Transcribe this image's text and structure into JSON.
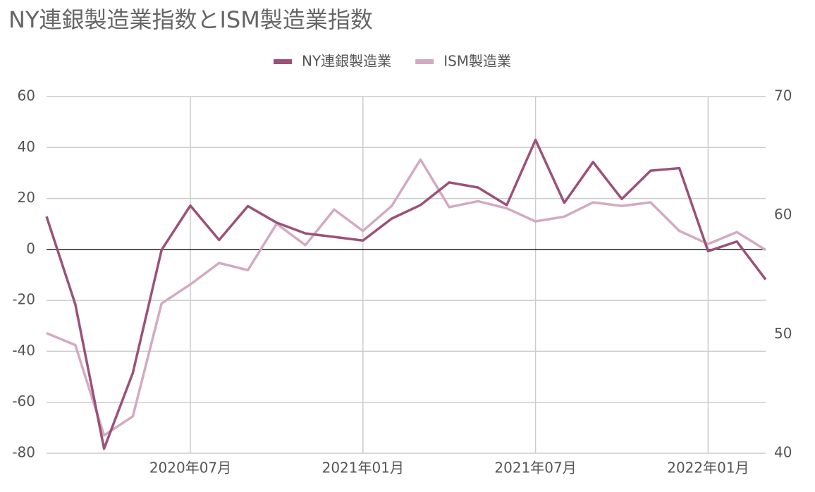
{
  "chart_data": {
    "type": "line",
    "title": "NY連銀製造業指数とISM製造業指数",
    "categories": [
      null,
      null,
      null,
      null,
      null,
      "2020年07月",
      null,
      null,
      null,
      null,
      null,
      "2021年01月",
      null,
      null,
      null,
      null,
      null,
      "2021年07月",
      null,
      null,
      null,
      null,
      null,
      "2022年01月",
      null,
      null
    ],
    "series": [
      {
        "name": "NY連銀製造業",
        "color": "#9b5178",
        "values": [
          12.9,
          -21.5,
          -78.2,
          -48.5,
          -0.2,
          17.2,
          3.7,
          17,
          10.5,
          6.3,
          4.9,
          3.5,
          12.1,
          17.4,
          26.3,
          24.3,
          17.4,
          43,
          18.3,
          34.3,
          19.8,
          30.9,
          31.9,
          -0.7,
          3.1,
          -11.8
        ]
      },
      {
        "name": "ISM製造業",
        "color": "#d3aac1",
        "axis": "y2",
        "values": [
          50.1,
          49.1,
          41.5,
          43.1,
          52.6,
          54.2,
          56.0,
          55.4,
          59.3,
          57.5,
          60.5,
          58.7,
          60.8,
          64.7,
          60.7,
          61.2,
          60.6,
          59.5,
          59.9,
          61.1,
          60.8,
          61.1,
          58.7,
          57.6,
          58.6,
          57.1
        ]
      }
    ],
    "ylim": [
      -80,
      60
    ],
    "yticks": [
      -80,
      -60,
      -40,
      -20,
      0,
      20,
      40,
      60
    ],
    "y2lim": [
      40,
      70
    ],
    "y2ticks": [
      40,
      50,
      60,
      70
    ],
    "grid": true,
    "legend": "top"
  }
}
